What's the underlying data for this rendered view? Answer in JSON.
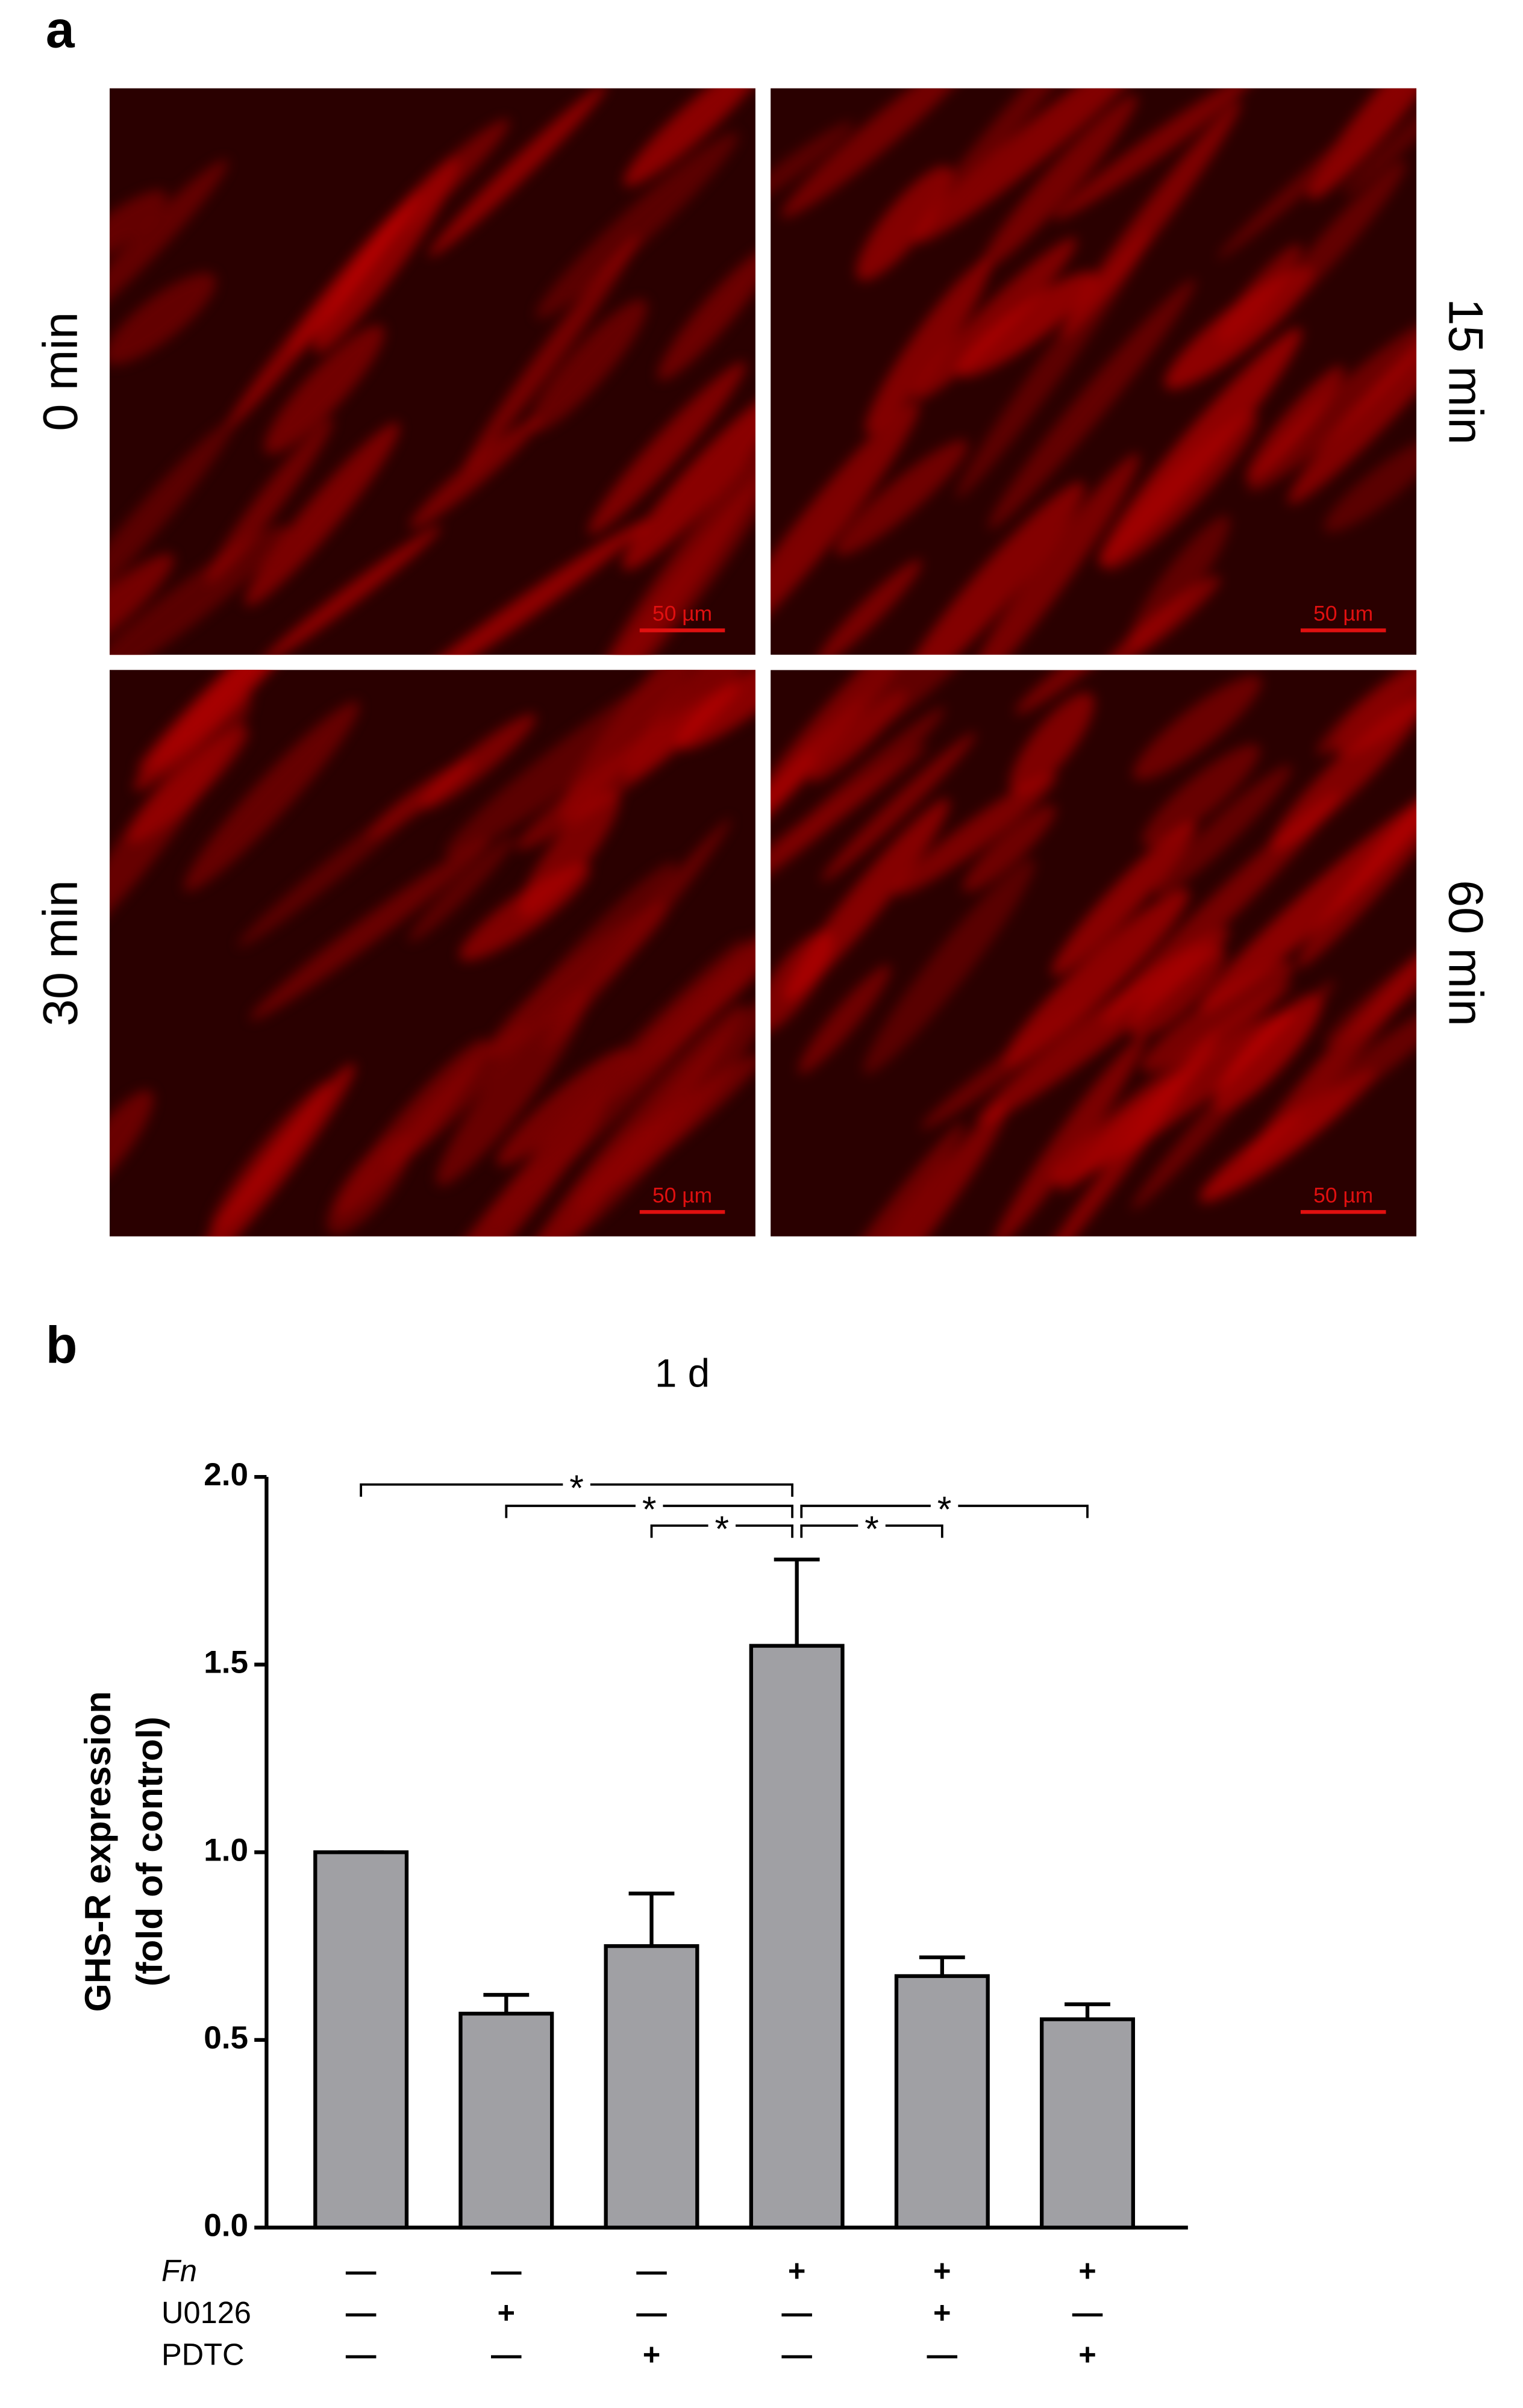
{
  "panel_a": {
    "label": "a",
    "images": [
      {
        "time": "0 min",
        "scale_bar": "50 µm"
      },
      {
        "time": "15 min",
        "scale_bar": "50 µm"
      },
      {
        "time": "30 min",
        "scale_bar": "50 µm"
      },
      {
        "time": "60 min",
        "scale_bar": "50 µm"
      }
    ]
  },
  "chart_data": {
    "type": "bar",
    "panel_label": "b",
    "title": "1 d",
    "ylabel": [
      "GHS-R expression",
      "(fold of control)"
    ],
    "values": [
      1.0,
      0.57,
      0.75,
      1.55,
      0.67,
      0.555
    ],
    "errors": [
      0,
      0.05,
      0.14,
      0.23,
      0.05,
      0.04
    ],
    "color": "#a0a0a4",
    "ylim": [
      0,
      2
    ],
    "yticks": [
      {
        "value": 0,
        "label": "0.0"
      },
      {
        "value": 0.5,
        "label": "0.5"
      },
      {
        "value": 1,
        "label": "1.0"
      },
      {
        "value": 1.5,
        "label": "1.5"
      },
      {
        "value": 2,
        "label": "2.0"
      }
    ],
    "treatments": [
      {
        "name": "Fn",
        "signs": [
          "—",
          "—",
          "—",
          "+",
          "+",
          "+"
        ]
      },
      {
        "name": "U0126",
        "signs": [
          "—",
          "+",
          "—",
          "—",
          "+",
          "—"
        ]
      },
      {
        "name": "PDTC",
        "signs": [
          "—",
          "—",
          "+",
          "—",
          "—",
          "+"
        ]
      }
    ],
    "comparisons": [
      {
        "bars": [
          0,
          3
        ],
        "label": "*"
      },
      {
        "bars": [
          1,
          3
        ],
        "label": "*"
      },
      {
        "bars": [
          2,
          3
        ],
        "label": "*"
      },
      {
        "bars": [
          3,
          4
        ],
        "label": "*"
      },
      {
        "bars": [
          3,
          5
        ],
        "label": "*"
      }
    ]
  }
}
